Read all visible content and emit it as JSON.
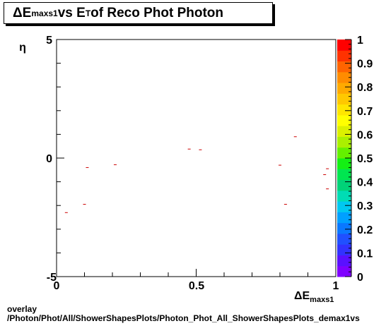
{
  "chart_data": {
    "type": "scatter",
    "title": {
      "delta": "ΔE",
      "sub1": "maxs1",
      "mid": " vs E",
      "sub2": "T",
      "rest": " of Reco Phot Photon"
    },
    "xlabel": {
      "main": "ΔE",
      "sub": "maxs1"
    },
    "ylabel": "η",
    "xlim": [
      0,
      1
    ],
    "ylim": [
      -5,
      5
    ],
    "x_ticks": [
      "0",
      "0.5",
      "1"
    ],
    "y_ticks": [
      "5",
      "0",
      "-5"
    ],
    "colorbar": {
      "range": [
        0,
        1
      ],
      "labels": [
        "1",
        "0.9",
        "0.8",
        "0.7",
        "0.6",
        "0.5",
        "0.4",
        "0.3",
        "0.2",
        "0.1",
        "0"
      ],
      "colors": [
        "#7f00ff",
        "#5a10ff",
        "#3232ff",
        "#2050ff",
        "#0a78ff",
        "#00a0ff",
        "#00c8f0",
        "#00dcb4",
        "#00d278",
        "#00e650",
        "#14f014",
        "#64f000",
        "#aaf000",
        "#dcf000",
        "#ffff00",
        "#ffe600",
        "#ffc800",
        "#ffaa00",
        "#ff8c00",
        "#ff6400",
        "#ff3200",
        "#ff0000"
      ]
    },
    "marker_color": "#cc0000",
    "points": [
      {
        "x": 0.035,
        "y": -2.3
      },
      {
        "x": 0.1,
        "y": -1.95
      },
      {
        "x": 0.11,
        "y": -0.4
      },
      {
        "x": 0.21,
        "y": -0.28
      },
      {
        "x": 0.475,
        "y": 0.38
      },
      {
        "x": 0.515,
        "y": 0.35
      },
      {
        "x": 0.8,
        "y": -0.3
      },
      {
        "x": 0.82,
        "y": -1.95
      },
      {
        "x": 0.855,
        "y": 0.9
      },
      {
        "x": 0.96,
        "y": -0.7
      },
      {
        "x": 0.97,
        "y": -0.45
      },
      {
        "x": 0.97,
        "y": -1.3
      }
    ]
  },
  "footer": {
    "line1": "overlay",
    "line2": "/Photon/Phot/All/ShowerShapesPlots/Photon_Phot_All_ShowerShapesPlots_demax1vs"
  }
}
